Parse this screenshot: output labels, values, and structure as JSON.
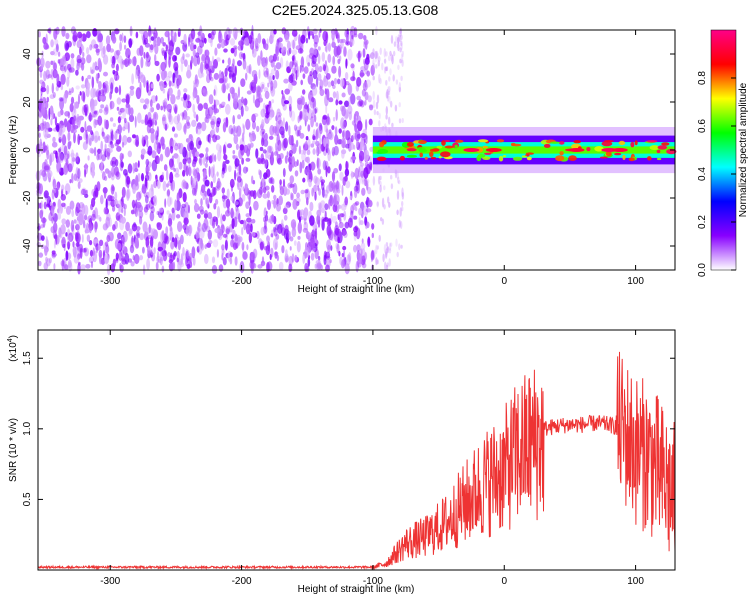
{
  "title": "C2E5.2024.325.05.13.G08",
  "chart_data": [
    {
      "type": "heatmap",
      "xlabel": "Height of straight line (km)",
      "ylabel": "Frequency (Hz)",
      "xlim": [
        -355,
        130
      ],
      "ylim": [
        -50,
        50
      ],
      "x_ticks": [
        -300,
        -200,
        -100,
        0,
        100
      ],
      "y_ticks": [
        40,
        20,
        0,
        -20,
        -40
      ],
      "colorbar": {
        "label": "Normalized spectral amplitude",
        "range": [
          0,
          1
        ],
        "ticks": [
          "0.0",
          "0.2",
          "0.4",
          "0.6",
          "0.8"
        ],
        "colors": [
          "#ffffff",
          "#8800ff",
          "#0000ff",
          "#00ffff",
          "#00ff00",
          "#ffff00",
          "#ff0000",
          "#ff0088"
        ]
      },
      "regions": [
        {
          "x_range": [
            -355,
            -100
          ],
          "y_range": [
            -50,
            50
          ],
          "description_level": 0.1
        },
        {
          "x_range": [
            -100,
            130
          ],
          "center_frequency": 0,
          "band_halfwidth": 6,
          "peak_level": 0.95
        }
      ]
    },
    {
      "type": "line",
      "xlabel": "Height of straight line (km)",
      "ylabel": "SNR (10 * v/v)",
      "y_multiplier": "(x10",
      "y_multiplier_exp": "4",
      "y_multiplier_close": ")",
      "xlim": [
        -355,
        130
      ],
      "ylim": [
        0,
        1.7
      ],
      "x_ticks": [
        -300,
        -200,
        -100,
        0,
        100
      ],
      "y_ticks": [
        "0.5",
        "1.0",
        "1.5"
      ],
      "line_color": "#ee3333",
      "series_points": [
        {
          "x": -355,
          "y": 0.02
        },
        {
          "x": -100,
          "y": 0.02
        },
        {
          "x": -90,
          "y": 0.05
        },
        {
          "x": -75,
          "y": 0.2
        },
        {
          "x": -60,
          "y": 0.25
        },
        {
          "x": -45,
          "y": 0.35
        },
        {
          "x": -30,
          "y": 0.5
        },
        {
          "x": -15,
          "y": 0.65
        },
        {
          "x": 0,
          "y": 0.75
        },
        {
          "x": 10,
          "y": 0.88
        },
        {
          "x": 20,
          "y": 0.95
        },
        {
          "x": 30,
          "y": 1.0
        },
        {
          "x": 40,
          "y": 1.02
        },
        {
          "x": 50,
          "y": 1.03
        },
        {
          "x": 60,
          "y": 1.03
        },
        {
          "x": 70,
          "y": 1.04
        },
        {
          "x": 80,
          "y": 1.03
        },
        {
          "x": 90,
          "y": 1.0
        },
        {
          "x": 100,
          "y": 0.85
        },
        {
          "x": 110,
          "y": 0.8
        },
        {
          "x": 120,
          "y": 0.65
        },
        {
          "x": 130,
          "y": 0.5
        }
      ]
    }
  ]
}
